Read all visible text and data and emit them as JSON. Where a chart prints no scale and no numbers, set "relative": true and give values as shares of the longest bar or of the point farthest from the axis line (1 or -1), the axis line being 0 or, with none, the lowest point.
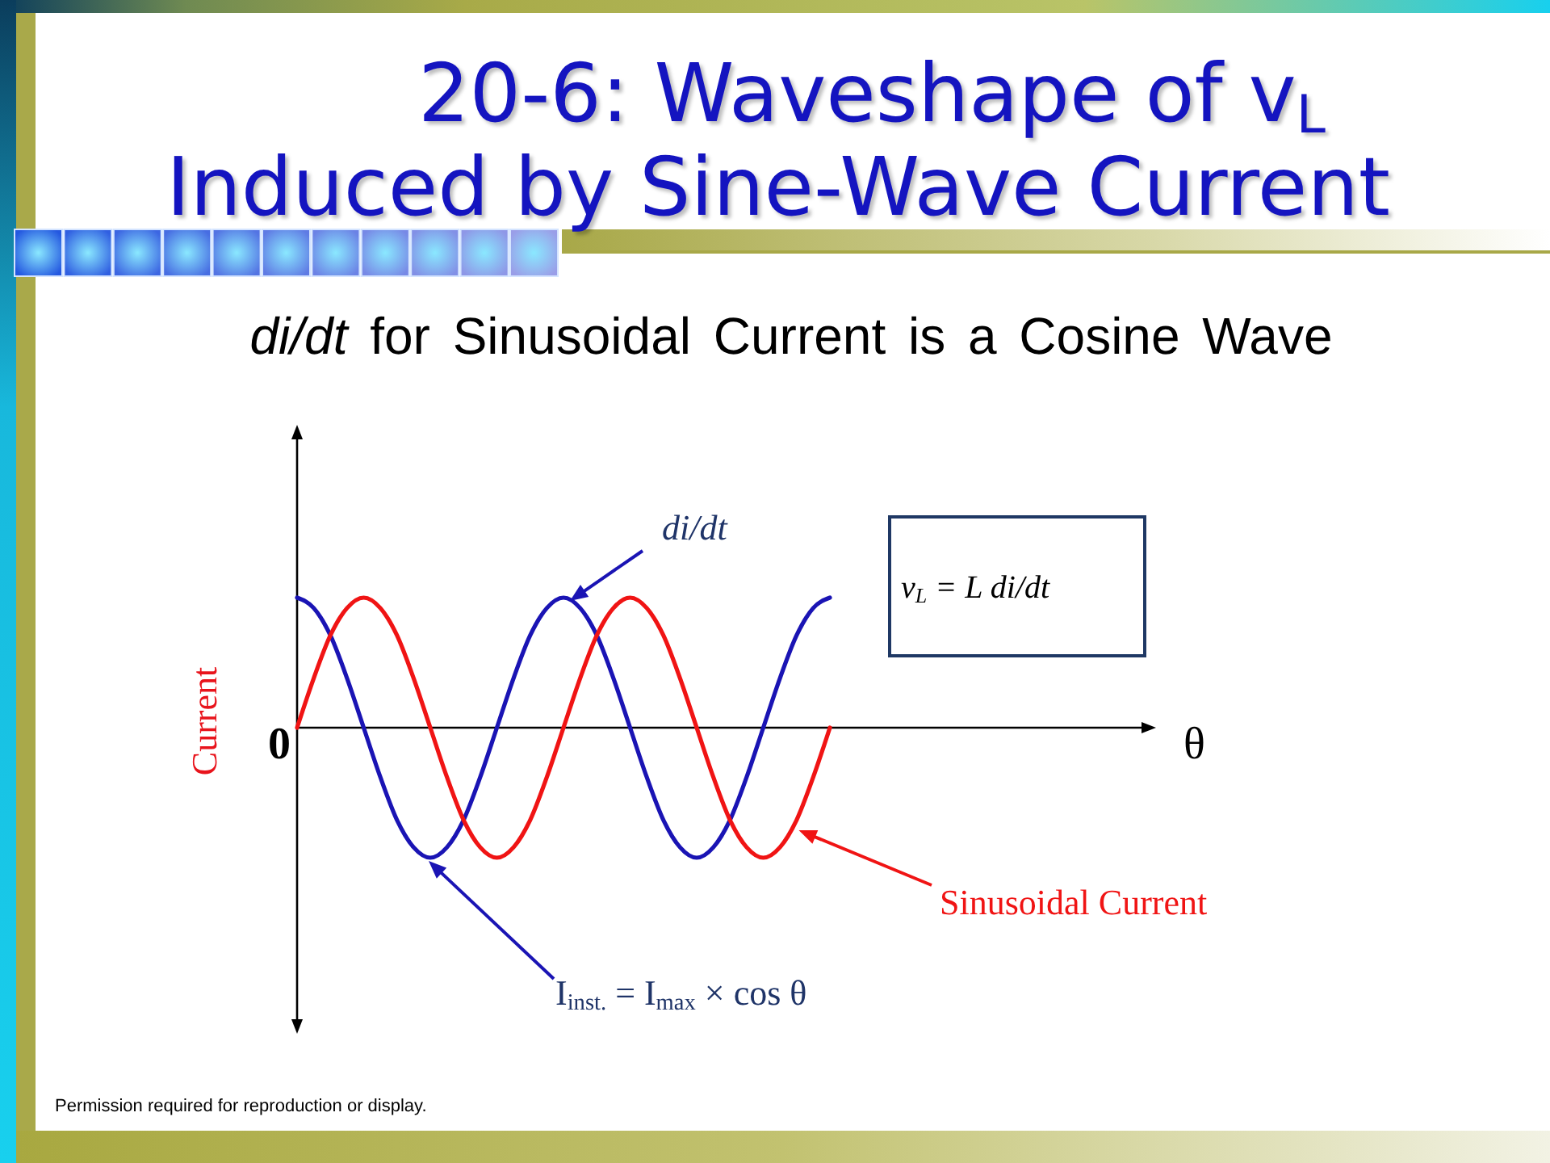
{
  "chart_data": {
    "type": "line",
    "title": "20-6: Waveshape of v$_{L}$\nInduced by Sine-Wave Current",
    "subtitle": "di/dt for Sinusoidal Current is a Cosine Wave",
    "ylabel": "Current",
    "relative": true,
    "categories": [
      null,
      null,
      null,
      null,
      null,
      null,
      null,
      null,
      null,
      null,
      null,
      null,
      null,
      null,
      null,
      null,
      null,
      null,
      null,
      null,
      null,
      null,
      null,
      null,
      null,
      null,
      null,
      null,
      null,
      null,
      null,
      null,
      null
    ],
    "series": [
      {
        "name": "di/dt",
        "color": "#1a14b4",
        "values": [
          1,
          0.92,
          0.71,
          0.38,
          0,
          -0.38,
          -0.71,
          -0.92,
          -1,
          -0.92,
          -0.71,
          -0.38,
          0,
          0.38,
          0.71,
          0.92,
          1,
          0.92,
          0.71,
          0.38,
          0,
          -0.38,
          -0.71,
          -0.92,
          -1,
          -0.92,
          -0.71,
          -0.38,
          0,
          0.38,
          0.71,
          0.92,
          1
        ]
      },
      {
        "name": "Sinusoidal Current",
        "color": "#f01414",
        "values": [
          0,
          0.38,
          0.71,
          0.92,
          1,
          0.92,
          0.71,
          0.38,
          0,
          -0.38,
          -0.71,
          -0.92,
          -1,
          -0.92,
          -0.71,
          -0.38,
          0,
          0.38,
          0.71,
          0.92,
          1,
          0.92,
          0.71,
          0.38,
          0,
          -0.38,
          -0.71,
          -0.92,
          -1,
          -0.92,
          -0.71,
          -0.38,
          0
        ]
      }
    ],
    "annotations": [
      "0",
      "I$_{inst.}$ = I$_{max}$ × cos θ",
      "v$_{L}$ = L di/dt",
      "θ",
      "Permission required for reproduction or display."
    ]
  }
}
